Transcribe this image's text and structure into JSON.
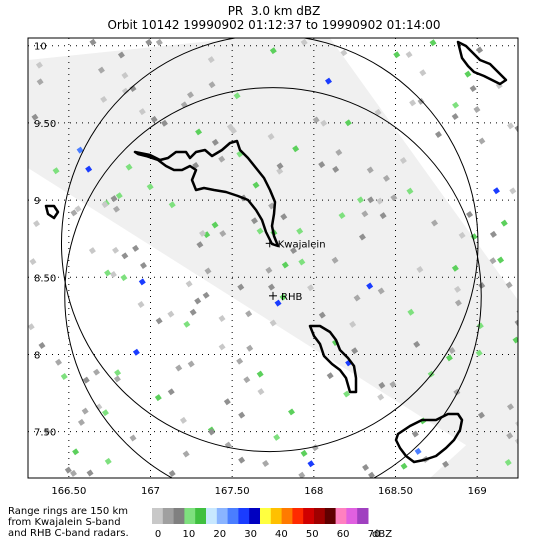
{
  "header": {
    "title": "PR  3.0 km dBZ",
    "subtitle": "Orbit 10142 19990902 01:12:37 to 19990902 01:14:00"
  },
  "map": {
    "lon_min": 166.25,
    "lon_max": 169.25,
    "lat_min": 7.2,
    "lat_max": 10.05,
    "lon_ticks": [
      {
        "v": 166.5,
        "label": "166.50"
      },
      {
        "v": 167.0,
        "label": "167"
      },
      {
        "v": 167.5,
        "label": "167.50"
      },
      {
        "v": 168.0,
        "label": "168"
      },
      {
        "v": 168.5,
        "label": "168.50"
      },
      {
        "v": 169.0,
        "label": "169"
      }
    ],
    "lat_ticks": [
      {
        "v": 10.0,
        "label": "10"
      },
      {
        "v": 9.5,
        "label": "9.50"
      },
      {
        "v": 9.0,
        "label": "9"
      },
      {
        "v": 8.5,
        "label": "8.50"
      },
      {
        "v": 8.0,
        "label": "8"
      },
      {
        "v": 7.5,
        "label": "7.50"
      }
    ],
    "stations": [
      {
        "name": "Kwajalein",
        "lon": 167.73,
        "lat": 8.72
      },
      {
        "name": "RHB",
        "lon": 167.75,
        "lat": 8.38
      }
    ],
    "range_rings": [
      {
        "center": "Kwajalein",
        "radius_km": 150
      },
      {
        "center": "RHB",
        "radius_km": 150
      }
    ],
    "swath_color": "#f0f0f0"
  },
  "legend": {
    "note_lines": [
      "Range rings are 150 km",
      "from Kwajalein S-band",
      "and RHB C-band radars."
    ],
    "colors": [
      "#c8c8c8",
      "#a0a0a0",
      "#808080",
      "#7ee07e",
      "#40c040",
      "#c8e8ff",
      "#8ab4ff",
      "#4a7eff",
      "#1a3cff",
      "#0000c0",
      "#ffff40",
      "#ffc000",
      "#ff7a00",
      "#ff2a00",
      "#d00000",
      "#a00000",
      "#600000",
      "#ff80c0",
      "#e060e0",
      "#a040c0"
    ],
    "labels": [
      "0",
      "10",
      "20",
      "30",
      "40",
      "50",
      "60",
      "70"
    ],
    "unit": "dBZ"
  }
}
